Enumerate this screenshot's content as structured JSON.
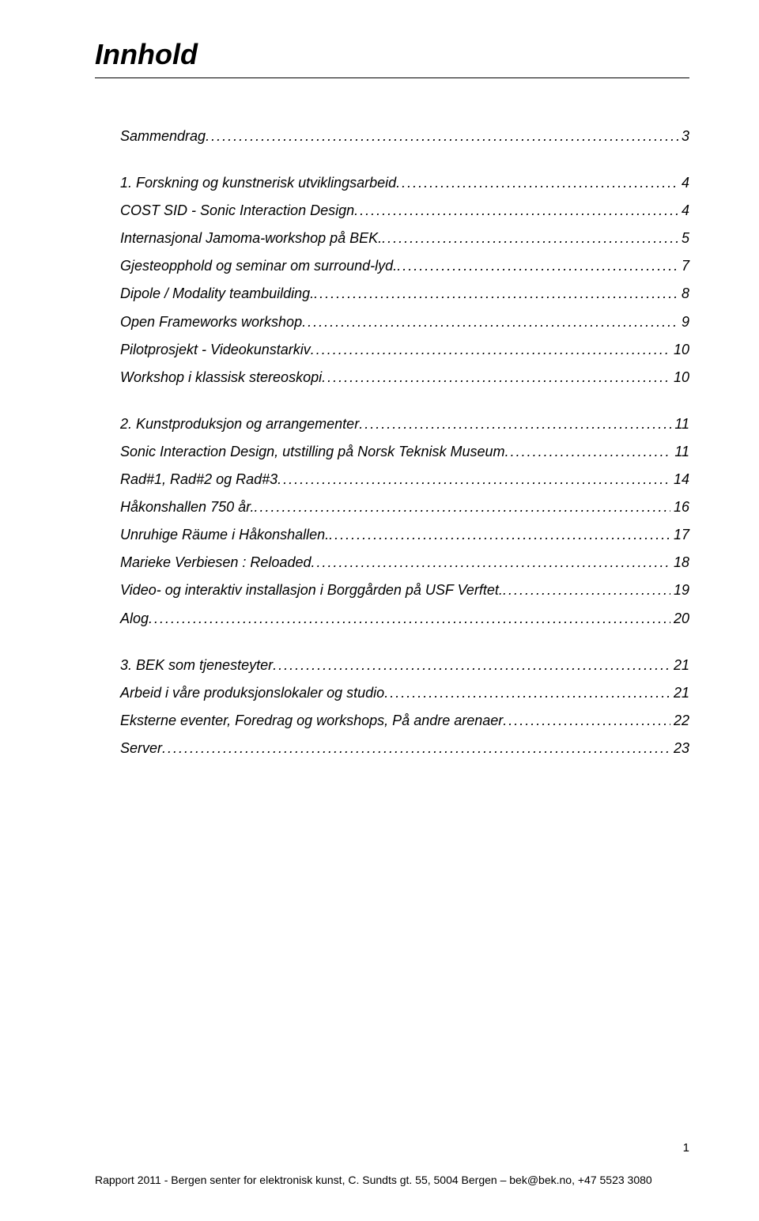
{
  "title": "Innhold",
  "sections": {
    "s0": {
      "label": "Sammendrag",
      "page": "3"
    },
    "s1": {
      "label": "1. Forskning og kunstnerisk utviklingsarbeid",
      "page": "4"
    },
    "s1a": {
      "label": "COST SID - Sonic Interaction Design",
      "page": "4"
    },
    "s1b": {
      "label": "Internasjonal Jamoma-workshop på BEK.",
      "page": "5"
    },
    "s1c": {
      "label": "Gjesteopphold og seminar om surround-lyd.",
      "page": "7"
    },
    "s1d": {
      "label": "Dipole / Modality teambuilding.",
      "page": "8"
    },
    "s1e": {
      "label": "Open Frameworks workshop",
      "page": "9"
    },
    "s1f": {
      "label": "Pilotprosjekt - Videokunstarkiv",
      "page": "10"
    },
    "s1g": {
      "label": "Workshop i klassisk stereoskopi",
      "page": "10"
    },
    "s2": {
      "label": "2. Kunstproduksjon og arrangementer",
      "page": "11"
    },
    "s2a": {
      "label": "Sonic Interaction Design, utstilling på Norsk Teknisk Museum",
      "page": "11"
    },
    "s2b": {
      "label": "Rad#1, Rad#2 og Rad#3",
      "page": "14"
    },
    "s2c": {
      "label": "Håkonshallen 750 år.",
      "page": "16"
    },
    "s2d": {
      "label": "Unruhige Räume i Håkonshallen.",
      "page": "17"
    },
    "s2e": {
      "label": "Marieke Verbiesen : Reloaded",
      "page": "18"
    },
    "s2f": {
      "label": "Video- og interaktiv installasjon i Borggården på USF Verftet.",
      "page": "19"
    },
    "s2g": {
      "label": "Alog",
      "page": "20"
    },
    "s3": {
      "label": "3. BEK som tjenesteyter",
      "page": "21"
    },
    "s3a": {
      "label": "Arbeid i våre produksjonslokaler og studio",
      "page": "21"
    },
    "s3b": {
      "label": "Eksterne eventer, Foredrag og workshops, På andre arenaer",
      "page": "22"
    },
    "s3c": {
      "label": "Server",
      "page": "23"
    }
  },
  "pageNumber": "1",
  "footerText": "Rapport 2011 - Bergen senter for elektronisk kunst, C. Sundts gt. 55, 5004 Bergen – bek@bek.no, +47 5523 3080"
}
